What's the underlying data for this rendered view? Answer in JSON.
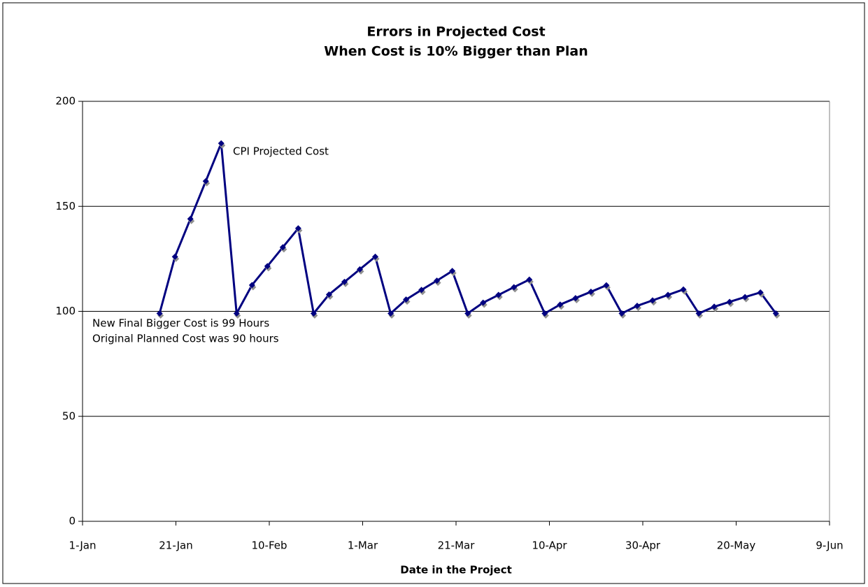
{
  "chart_data": {
    "type": "line",
    "title": [
      "Errors in Projected Cost",
      "When Cost is 10% Bigger than Plan"
    ],
    "x_label": "Date in the Project",
    "annotations": [
      "CPI Projected Cost",
      "New Final Bigger Cost is 99 Hours",
      "Original Planned Cost was 90 hours"
    ],
    "x": [
      16.5,
      19.8,
      23.1,
      26.4,
      29.7,
      33.0,
      36.3,
      39.6,
      42.9,
      46.2,
      49.5,
      52.8,
      56.1,
      59.4,
      62.7,
      66.0,
      69.3,
      72.6,
      75.9,
      79.2,
      82.5,
      85.8,
      89.1,
      92.4,
      95.7,
      99.0,
      102.3,
      105.6,
      108.9,
      112.2,
      115.5,
      118.8,
      122.1,
      125.4,
      128.7,
      132.0,
      135.3,
      138.6,
      141.9,
      145.2,
      148.5
    ],
    "values": [
      99,
      126,
      144,
      162,
      180,
      99,
      112.5,
      121.5,
      130.5,
      139.5,
      99,
      108,
      114,
      120,
      126,
      99,
      105.6,
      110.2,
      114.6,
      119.2,
      99,
      104.1,
      107.8,
      111.5,
      115.1,
      99,
      103.2,
      106.3,
      109.3,
      112.4,
      99,
      102.6,
      105.2,
      107.8,
      110.4,
      99,
      102.2,
      104.5,
      106.8,
      109,
      99
    ],
    "color": "#000080",
    "xlim": [
      0,
      160
    ],
    "xticks": [
      {
        "value": 0,
        "label": "1-Jan"
      },
      {
        "value": 20,
        "label": "21-Jan"
      },
      {
        "value": 40,
        "label": "10-Feb"
      },
      {
        "value": 60,
        "label": "1-Mar"
      },
      {
        "value": 80,
        "label": "21-Mar"
      },
      {
        "value": 100,
        "label": "10-Apr"
      },
      {
        "value": 120,
        "label": "30-Apr"
      },
      {
        "value": 140,
        "label": "20-May"
      },
      {
        "value": 160,
        "label": "9-Jun"
      }
    ],
    "ylim": [
      0,
      200
    ],
    "yticks": [
      0,
      50,
      100,
      150,
      200
    ],
    "grid": true
  }
}
